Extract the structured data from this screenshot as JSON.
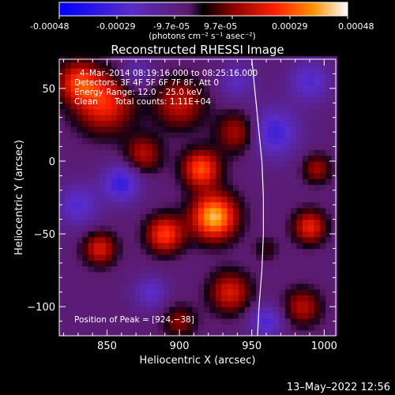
{
  "colorbar": {
    "tick_labels": [
      "-0.00048",
      "-0.00029",
      "-9.7e-05",
      "9.7e-05",
      "0.00029",
      "0.00048"
    ],
    "unit_label": "(photons cm⁻² s⁻¹ asec⁻²)",
    "range": [
      -0.00048,
      0.00048
    ]
  },
  "chart_data": {
    "type": "heatmap",
    "title": "Reconstructed RHESSI Image",
    "xlabel": "Heliocentric X (arcsec)",
    "ylabel": "Heliocentric Y (arcsec)",
    "xlim": [
      817,
      1008
    ],
    "ylim": [
      -120,
      70
    ],
    "x_ticks": [
      850,
      900,
      950,
      1000
    ],
    "y_ticks": [
      50,
      0,
      -50,
      -100
    ],
    "peak": [
      924,
      -38
    ],
    "limb_curve": [
      [
        950,
        70
      ],
      [
        953,
        40
      ],
      [
        957,
        0
      ],
      [
        958,
        -25
      ],
      [
        958,
        -50
      ],
      [
        957,
        -75
      ],
      [
        955,
        -100
      ],
      [
        954,
        -120
      ]
    ],
    "intensity_sources": [
      {
        "x": 924,
        "y": -38,
        "peak": 1.0,
        "sigma": 11
      },
      {
        "x": 915,
        "y": -5,
        "peak": 0.75,
        "sigma": 9
      },
      {
        "x": 890,
        "y": -50,
        "peak": 0.7,
        "sigma": 9
      },
      {
        "x": 848,
        "y": 40,
        "peak": 0.65,
        "sigma": 14
      },
      {
        "x": 830,
        "y": 55,
        "peak": 0.6,
        "sigma": 10
      },
      {
        "x": 900,
        "y": 40,
        "peak": 0.5,
        "sigma": 12
      },
      {
        "x": 940,
        "y": 20,
        "peak": 0.45,
        "sigma": 10
      },
      {
        "x": 845,
        "y": -60,
        "peak": 0.55,
        "sigma": 8
      },
      {
        "x": 990,
        "y": -45,
        "peak": 0.6,
        "sigma": 8
      },
      {
        "x": 995,
        "y": -5,
        "peak": 0.4,
        "sigma": 7
      },
      {
        "x": 935,
        "y": -90,
        "peak": 0.55,
        "sigma": 10
      },
      {
        "x": 875,
        "y": 5,
        "peak": 0.45,
        "sigma": 9
      },
      {
        "x": 900,
        "y": -110,
        "peak": 0.35,
        "sigma": 8
      },
      {
        "x": 985,
        "y": -100,
        "peak": 0.45,
        "sigma": 9
      },
      {
        "x": 960,
        "y": -60,
        "peak": 0.2,
        "sigma": 6
      },
      {
        "x": 860,
        "y": -15,
        "peak": -0.55,
        "sigma": 9
      },
      {
        "x": 965,
        "y": 20,
        "peak": -0.5,
        "sigma": 12
      },
      {
        "x": 830,
        "y": -30,
        "peak": -0.4,
        "sigma": 10
      },
      {
        "x": 960,
        "y": -110,
        "peak": -0.45,
        "sigma": 8
      },
      {
        "x": 990,
        "y": 55,
        "peak": -0.4,
        "sigma": 10
      },
      {
        "x": 880,
        "y": -90,
        "peak": -0.35,
        "sigma": 8
      },
      {
        "x": 940,
        "y": 55,
        "peak": -0.3,
        "sigma": 9
      },
      {
        "x": 870,
        "y": 60,
        "peak": -0.3,
        "sigma": 8
      }
    ]
  },
  "annotations": {
    "time_range": "4–Mar–2014 08:19:16.000 to 08:25:16.000",
    "detectors": "Detectors: 3F 4F 5F 6F 7F 8F, Att 0",
    "energy": "Energy Range: 12.0 – 25.0 keV",
    "algorithm": "Clean",
    "total_counts": "Total counts: 1.11E+04",
    "peak_position": "Position of Peak = [924,−38]"
  },
  "footer": {
    "date_stamp": "13–May–2022 12:56"
  }
}
